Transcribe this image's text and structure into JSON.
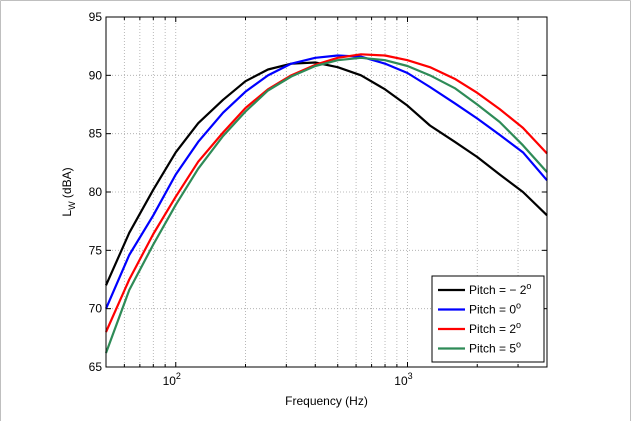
{
  "chart_data": {
    "type": "line",
    "xlabel": "Frequency (Hz)",
    "ylabel": {
      "base": "L",
      "sub": "W",
      "rest": " (dBA)"
    },
    "xscale": "log",
    "xlim": [
      50,
      4000
    ],
    "ylim": [
      65,
      95
    ],
    "grid": true,
    "legend_position": "bottom-right",
    "x_ticks": [
      {
        "value": 100,
        "base": "10",
        "exp": "2"
      },
      {
        "value": 1000,
        "base": "10",
        "exp": "3"
      }
    ],
    "y_ticks": [
      {
        "value": 65,
        "label": "65"
      },
      {
        "value": 70,
        "label": "70"
      },
      {
        "value": 75,
        "label": "75"
      },
      {
        "value": 80,
        "label": "80"
      },
      {
        "value": 85,
        "label": "85"
      },
      {
        "value": 90,
        "label": "90"
      },
      {
        "value": 95,
        "label": "95"
      }
    ],
    "x": [
      50,
      63,
      80,
      100,
      125,
      160,
      200,
      250,
      315,
      400,
      500,
      630,
      800,
      1000,
      1250,
      1600,
      2000,
      2500,
      3150,
      4000
    ],
    "series": [
      {
        "name": "Pitch = − 2",
        "sup": "o",
        "color": "#000000",
        "values": [
          72.0,
          76.5,
          80.2,
          83.4,
          85.9,
          87.9,
          89.5,
          90.5,
          91.0,
          91.1,
          90.7,
          90.0,
          88.8,
          87.4,
          85.7,
          84.3,
          83.0,
          81.5,
          80.0,
          78.0
        ]
      },
      {
        "name": "Pitch = 0",
        "sup": "o",
        "color": "#0000ff",
        "values": [
          70.0,
          74.6,
          78.0,
          81.5,
          84.3,
          86.8,
          88.6,
          90.0,
          91.0,
          91.5,
          91.7,
          91.6,
          91.0,
          90.2,
          89.0,
          87.6,
          86.3,
          84.9,
          83.4,
          81.0
        ]
      },
      {
        "name": "Pitch = 2",
        "sup": "o",
        "color": "#ff0000",
        "values": [
          68.0,
          72.5,
          76.4,
          79.6,
          82.6,
          85.1,
          87.2,
          88.8,
          90.0,
          90.9,
          91.5,
          91.8,
          91.7,
          91.3,
          90.7,
          89.7,
          88.5,
          87.1,
          85.5,
          83.3
        ]
      },
      {
        "name": "Pitch = 5",
        "sup": "o",
        "color": "#2e8b57",
        "values": [
          66.2,
          71.6,
          75.5,
          78.9,
          82.0,
          84.8,
          86.9,
          88.7,
          89.9,
          90.8,
          91.3,
          91.5,
          91.3,
          90.8,
          90.0,
          88.9,
          87.5,
          86.0,
          84.0,
          81.7
        ]
      }
    ]
  }
}
